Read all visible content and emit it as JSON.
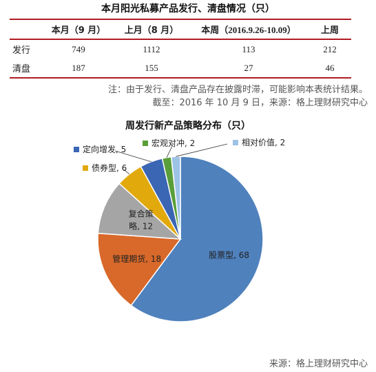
{
  "table": {
    "title": "本月阳光私募产品发行、清盘情况（只）",
    "headers": [
      "",
      "本月（9 月）",
      "上月（8 月）",
      "本周（2016.9.26-10.09）",
      "上周"
    ],
    "rows": [
      {
        "label": "发行",
        "values": [
          "749",
          "1112",
          "113",
          "212"
        ]
      },
      {
        "label": "清盘",
        "values": [
          "187",
          "155",
          "27",
          "46"
        ]
      }
    ]
  },
  "notes": {
    "line1": "注：由于发行、清盘产品存在披露时滞，可能影响本表统计结果。",
    "line2": "截至：2016 年 10 月 9 日，来源：格上理财研究中心"
  },
  "chart_data": {
    "type": "pie",
    "title": "周发行新产品策略分布（只）",
    "slices": [
      {
        "name": "股票型",
        "value": 68,
        "color": "#4f81bd",
        "label": "股票型, 68"
      },
      {
        "name": "管理期货",
        "value": 18,
        "color": "#d8692a",
        "label": "管理期货, 18"
      },
      {
        "name": "复合策略",
        "value": 12,
        "color": "#a5a5a5",
        "label_lines": [
          "复合策",
          "略, 12"
        ]
      },
      {
        "name": "债券型",
        "value": 6,
        "color": "#e2a90c",
        "label": "债券型, 6"
      },
      {
        "name": "定向增发",
        "value": 5,
        "color": "#3a66b3",
        "label": "定向增发, 5"
      },
      {
        "name": "宏观对冲",
        "value": 2,
        "color": "#5a9e3a",
        "label": "宏观对冲, 2"
      },
      {
        "name": "相对价值",
        "value": 2,
        "color": "#9dc3e6",
        "label": "相对价值, 2"
      }
    ]
  },
  "source": "来源：格上理财研究中心"
}
